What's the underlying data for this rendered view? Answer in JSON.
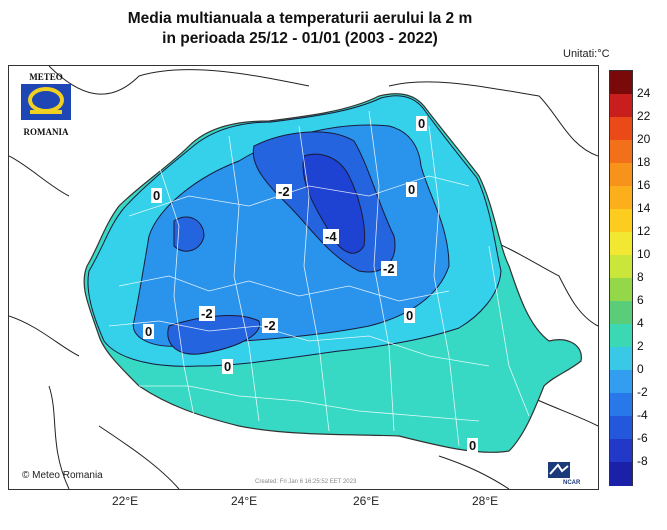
{
  "title_line1": "Media multianuala a temperaturii aerului la 2 m",
  "title_line2": "in perioada 25/12 - 01/01 (2003 - 2022)",
  "units": "Unitati:°C",
  "logo": {
    "top": "METEO",
    "bottom": "ROMANIA"
  },
  "copyright": "Meteo Romania",
  "created": "Created: Fri Jan  6 16:25:52 EET 2023",
  "ncar_label": "NCAR",
  "x_ticks": [
    "22°E",
    "24°E",
    "26°E",
    "28°E"
  ],
  "contour_labels": [
    "0",
    "-2",
    "-4",
    "0",
    "0",
    "-2",
    "0",
    "-2",
    "-2",
    "0",
    "0",
    "0"
  ],
  "legend": {
    "labels": [
      "24",
      "22",
      "20",
      "18",
      "16",
      "14",
      "12",
      "10",
      "8",
      "6",
      "4",
      "2",
      "0",
      "-2",
      "-4",
      "-6",
      "-8"
    ],
    "colors": [
      "#7a0a0a",
      "#c81e1e",
      "#ea4a18",
      "#f2701a",
      "#f7921a",
      "#fbaf1a",
      "#fccd1e",
      "#f2e832",
      "#cbe63a",
      "#94d84a",
      "#5bcc78",
      "#3bd8b4",
      "#39c8e6",
      "#339ef0",
      "#2878ea",
      "#2458dc",
      "#2238c8",
      "#1a20a8"
    ]
  },
  "map_colors": {
    "neighbor": "#ffffff",
    "black_sea": "#ffffff",
    "zone_warm": "#37d9c4",
    "zone_0": "#35d0ea",
    "zone_m2": "#2a94ec",
    "zone_m4": "#2464de",
    "zone_m6": "#1e42d2",
    "county_lines": "#ffffff",
    "contour_lines": "#1a1a3a"
  }
}
